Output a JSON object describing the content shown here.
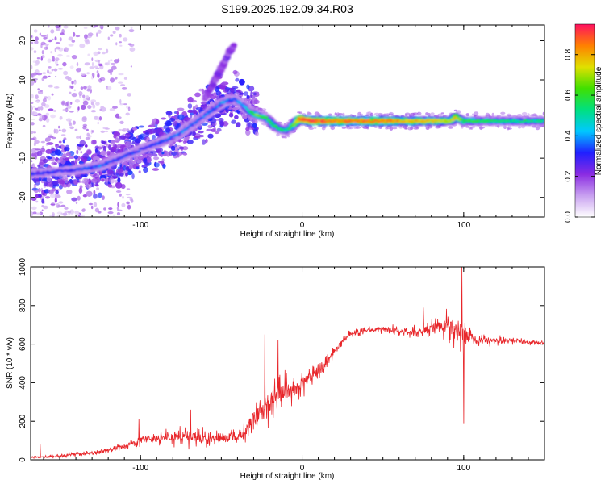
{
  "title": "S199.2025.192.09.34.R03",
  "chart_data": [
    {
      "type": "heatmap",
      "name": "spectrogram",
      "xlabel": "Height of straight line (km)",
      "ylabel": "Frequency (Hz)",
      "xlim": [
        -168,
        150
      ],
      "ylim": [
        -25,
        24
      ],
      "xticks": [
        -100,
        0,
        100
      ],
      "yticks": [
        -20,
        -10,
        0,
        10,
        20
      ],
      "colorbar": {
        "label": "Normalized spectral amplitude",
        "ticks": [
          0.0,
          0.2,
          0.4,
          0.6,
          0.8
        ],
        "range": [
          0,
          0.95
        ],
        "colors": [
          "#ffffff",
          "#c8a0f0",
          "#8a2be2",
          "#2020ff",
          "#00c8ff",
          "#00e080",
          "#40e000",
          "#e0e000",
          "#ff8000",
          "#ff1060"
        ]
      },
      "ridge": {
        "x": [
          -168,
          -155,
          -140,
          -125,
          -110,
          -95,
          -85,
          -75,
          -65,
          -55,
          -48,
          -42,
          -38,
          -33,
          -28,
          -22,
          -18,
          -14,
          -10,
          -7,
          -4,
          -2,
          0,
          5,
          20,
          40,
          60,
          80,
          92,
          95,
          100,
          120,
          150
        ],
        "y": [
          -14,
          -13.5,
          -13,
          -12,
          -9.5,
          -7,
          -5.5,
          -3.5,
          -0.5,
          2.5,
          4.5,
          5,
          4,
          2,
          1,
          0.3,
          -1.5,
          -2.5,
          -3,
          -2,
          -1,
          0,
          0,
          -0.5,
          -0.5,
          -0.5,
          -0.5,
          -0.5,
          -0.5,
          0.5,
          -0.5,
          -0.5,
          -0.5
        ],
        "amplitude": [
          0.3,
          0.3,
          0.3,
          0.35,
          0.3,
          0.3,
          0.35,
          0.35,
          0.35,
          0.35,
          0.4,
          0.35,
          0.35,
          0.5,
          0.65,
          0.55,
          0.6,
          0.55,
          0.5,
          0.6,
          0.7,
          0.85,
          0.9,
          0.9,
          0.85,
          0.85,
          0.8,
          0.75,
          0.7,
          0.75,
          0.6,
          0.55,
          0.5
        ]
      },
      "secondary_branch": {
        "x": [
          -60,
          -55,
          -50,
          -45,
          -42
        ],
        "y": [
          5,
          9,
          13,
          17,
          19
        ]
      },
      "noise_region": {
        "x": [
          -168,
          -105
        ],
        "y": [
          -25,
          24
        ]
      }
    },
    {
      "type": "line",
      "name": "snr",
      "xlabel": "Height of straight line (km)",
      "ylabel": "SNR (10 * v/v)",
      "xlim": [
        -168,
        150
      ],
      "ylim": [
        0,
        1000
      ],
      "xticks": [
        -100,
        0,
        100
      ],
      "yticks": [
        0,
        200,
        400,
        600,
        800,
        1000
      ],
      "color": "#e8262a",
      "envelope": {
        "x": [
          -168,
          -160,
          -150,
          -140,
          -130,
          -120,
          -110,
          -100,
          -90,
          -80,
          -70,
          -60,
          -50,
          -40,
          -35,
          -30,
          -25,
          -20,
          -15,
          -10,
          -5,
          0,
          5,
          10,
          15,
          20,
          25,
          30,
          40,
          50,
          60,
          70,
          80,
          85,
          90,
          95,
          100,
          105,
          110,
          120,
          130,
          140,
          150
        ],
        "y": [
          15,
          15,
          20,
          30,
          35,
          50,
          70,
          100,
          110,
          120,
          120,
          110,
          110,
          120,
          150,
          220,
          260,
          300,
          340,
          360,
          380,
          400,
          430,
          460,
          500,
          560,
          620,
          650,
          670,
          680,
          670,
          660,
          680,
          700,
          700,
          680,
          640,
          630,
          620,
          620,
          620,
          610,
          610
        ]
      },
      "noise_amplitude": {
        "x": [
          -168,
          -110,
          -90,
          -70,
          -50,
          -40,
          -30,
          -20,
          -10,
          0,
          20,
          40,
          70,
          80,
          88,
          95,
          100,
          105,
          150
        ],
        "y": [
          10,
          25,
          60,
          70,
          55,
          60,
          120,
          160,
          130,
          90,
          40,
          25,
          40,
          70,
          90,
          120,
          200,
          40,
          15
        ]
      },
      "peaks": [
        {
          "x": -162,
          "y": 80
        },
        {
          "x": -101,
          "y": 210
        },
        {
          "x": -69,
          "y": 260
        },
        {
          "x": -23,
          "y": 650
        },
        {
          "x": -15,
          "y": 620
        },
        {
          "x": 75,
          "y": 790
        },
        {
          "x": 99,
          "y": 1000
        },
        {
          "x": 100,
          "y": 190
        }
      ]
    }
  ]
}
